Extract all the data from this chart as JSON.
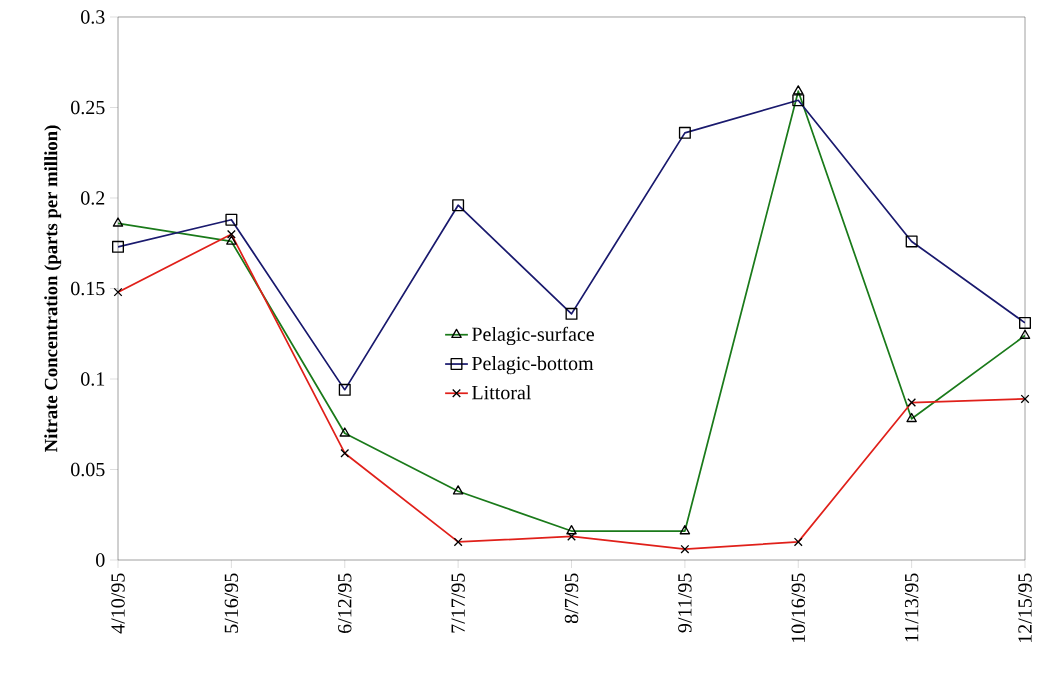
{
  "chart_data": {
    "type": "line",
    "ylabel": "Nitrate Concentration (parts per million)",
    "categories": [
      "4/10/95",
      "5/16/95",
      "6/12/95",
      "7/17/95",
      "8/7/95",
      "9/11/95",
      "10/16/95",
      "11/13/95",
      "12/15/95"
    ],
    "ylim": [
      0,
      0.3
    ],
    "yticks": [
      0,
      0.05,
      0.1,
      0.15,
      0.2,
      0.25,
      0.3
    ],
    "legend": "center",
    "series": [
      {
        "name": "Pelagic-surface",
        "color": "#1a7a1a",
        "marker": "triangle",
        "values": [
          0.186,
          0.176,
          0.07,
          0.038,
          0.016,
          0.016,
          0.259,
          0.078,
          0.124
        ]
      },
      {
        "name": "Pelagic-bottom",
        "color": "#1a1a6e",
        "marker": "square",
        "values": [
          0.173,
          0.188,
          0.094,
          0.196,
          0.136,
          0.236,
          0.254,
          0.176,
          0.131
        ]
      },
      {
        "name": "Littoral",
        "color": "#e0201a",
        "marker": "cross",
        "values": [
          0.148,
          0.18,
          0.059,
          0.01,
          0.013,
          0.006,
          0.01,
          0.087,
          0.089
        ]
      }
    ]
  }
}
